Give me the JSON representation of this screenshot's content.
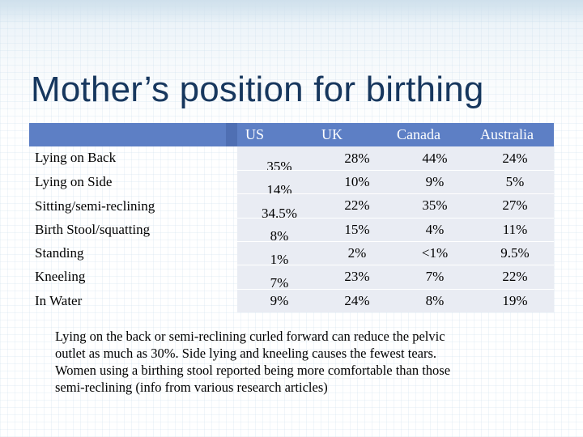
{
  "title": "Mother’s position for birthing",
  "table": {
    "columns": [
      "US",
      "UK",
      "Canada",
      "Australia"
    ],
    "rows": [
      {
        "label": "Lying on Back",
        "values": [
          "35%",
          "28%",
          "44%",
          "24%"
        ]
      },
      {
        "label": "Lying on Side",
        "values": [
          "14%",
          "10%",
          "9%",
          "5%"
        ]
      },
      {
        "label": "Sitting/semi-reclining",
        "values": [
          "34.5%",
          "22%",
          "35%",
          "27%"
        ]
      },
      {
        "label": "Birth Stool/squatting",
        "values": [
          "8%",
          "15%",
          "4%",
          "11%"
        ]
      },
      {
        "label": "Standing",
        "values": [
          "1%",
          "2%",
          "<1%",
          "9.5%"
        ]
      },
      {
        "label": "Kneeling",
        "values": [
          "7%",
          "23%",
          "7%",
          "22%"
        ]
      },
      {
        "label": "In Water",
        "values": [
          "9%",
          "24%",
          "8%",
          "19%"
        ]
      }
    ]
  },
  "note": {
    "lines": [
      "Lying on the back or semi-reclining  curled forward can reduce the pelvic",
      "outlet as much as 30%.  Side lying and kneeling causes the fewest tears.",
      "Women using a birthing stool reported being more comfortable than those",
      "semi-reclining  (info from various research articles)"
    ]
  }
}
